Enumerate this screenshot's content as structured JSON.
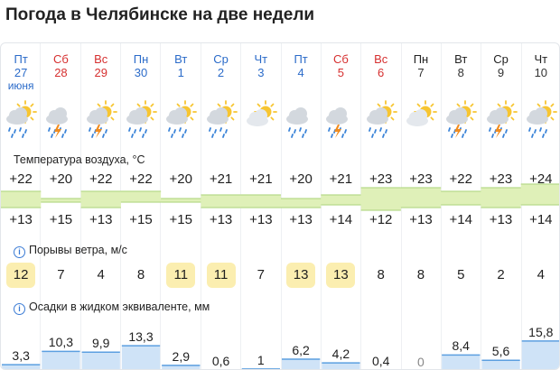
{
  "title": "Погода в Челябинске на две недели",
  "days": [
    {
      "dow": "Пт",
      "date": "27",
      "month": "июня",
      "color": "blue",
      "icon": "sun-cloud-rain-icon",
      "tmax": "+22",
      "tmin": "+13",
      "wind": "12",
      "precip": "3,3"
    },
    {
      "dow": "Сб",
      "date": "28",
      "month": "",
      "color": "red",
      "icon": "cloud-thunder-rain-icon",
      "tmax": "+20",
      "tmin": "+15",
      "wind": "7",
      "precip": "10,3"
    },
    {
      "dow": "Вс",
      "date": "29",
      "month": "",
      "color": "red",
      "icon": "sun-cloud-thunder-rain-icon",
      "tmax": "+22",
      "tmin": "+13",
      "wind": "4",
      "precip": "9,9"
    },
    {
      "dow": "Пн",
      "date": "30",
      "month": "",
      "color": "blue",
      "icon": "sun-cloud-rain-icon",
      "tmax": "+22",
      "tmin": "+15",
      "wind": "8",
      "precip": "13,3"
    },
    {
      "dow": "Вт",
      "date": "1",
      "month": "",
      "color": "blue",
      "icon": "sun-cloud-rain-icon",
      "tmax": "+20",
      "tmin": "+15",
      "wind": "11",
      "precip": "2,9"
    },
    {
      "dow": "Ср",
      "date": "2",
      "month": "",
      "color": "blue",
      "icon": "sun-cloud-rain-icon",
      "tmax": "+21",
      "tmin": "+13",
      "wind": "11",
      "precip": "0,6"
    },
    {
      "dow": "Чт",
      "date": "3",
      "month": "",
      "color": "blue",
      "icon": "sun-cloud-icon",
      "tmax": "+21",
      "tmin": "+13",
      "wind": "7",
      "precip": "1"
    },
    {
      "dow": "Пт",
      "date": "4",
      "month": "",
      "color": "blue",
      "icon": "cloud-rain-icon",
      "tmax": "+20",
      "tmin": "+13",
      "wind": "13",
      "precip": "6,2"
    },
    {
      "dow": "Сб",
      "date": "5",
      "month": "",
      "color": "red",
      "icon": "cloud-thunder-rain-icon",
      "tmax": "+21",
      "tmin": "+14",
      "wind": "13",
      "precip": "4,2"
    },
    {
      "dow": "Вс",
      "date": "6",
      "month": "",
      "color": "red",
      "icon": "sun-cloud-rain-icon",
      "tmax": "+23",
      "tmin": "+12",
      "wind": "8",
      "precip": "0,4"
    },
    {
      "dow": "Пн",
      "date": "7",
      "month": "",
      "color": "black",
      "icon": "sun-cloud-icon",
      "tmax": "+23",
      "tmin": "+13",
      "wind": "8",
      "precip": "0"
    },
    {
      "dow": "Вт",
      "date": "8",
      "month": "",
      "color": "black",
      "icon": "sun-cloud-thunder-rain-icon",
      "tmax": "+22",
      "tmin": "+14",
      "wind": "5",
      "precip": "8,4"
    },
    {
      "dow": "Ср",
      "date": "9",
      "month": "",
      "color": "black",
      "icon": "sun-cloud-thunder-rain-icon",
      "tmax": "+23",
      "tmin": "+13",
      "wind": "2",
      "precip": "5,6"
    },
    {
      "dow": "Чт",
      "date": "10",
      "month": "",
      "color": "black",
      "icon": "sun-cloud-rain-icon",
      "tmax": "+24",
      "tmin": "+14",
      "wind": "4",
      "precip": "15,8"
    }
  ],
  "sections": {
    "temperature": "Температура воздуха, °C",
    "wind": "Порывы ветра, м/с",
    "precip": "Осадки в жидком эквиваленте, мм"
  },
  "colors": {
    "blue_day": "#2b6bc9",
    "red_day": "#d63030",
    "temp_band": "#dff0b8",
    "wind_high": "#fbeeb0",
    "precip_bar": "#cfe3f7",
    "precip_top": "#5c9fe0",
    "info": "#3a7bd5"
  }
}
